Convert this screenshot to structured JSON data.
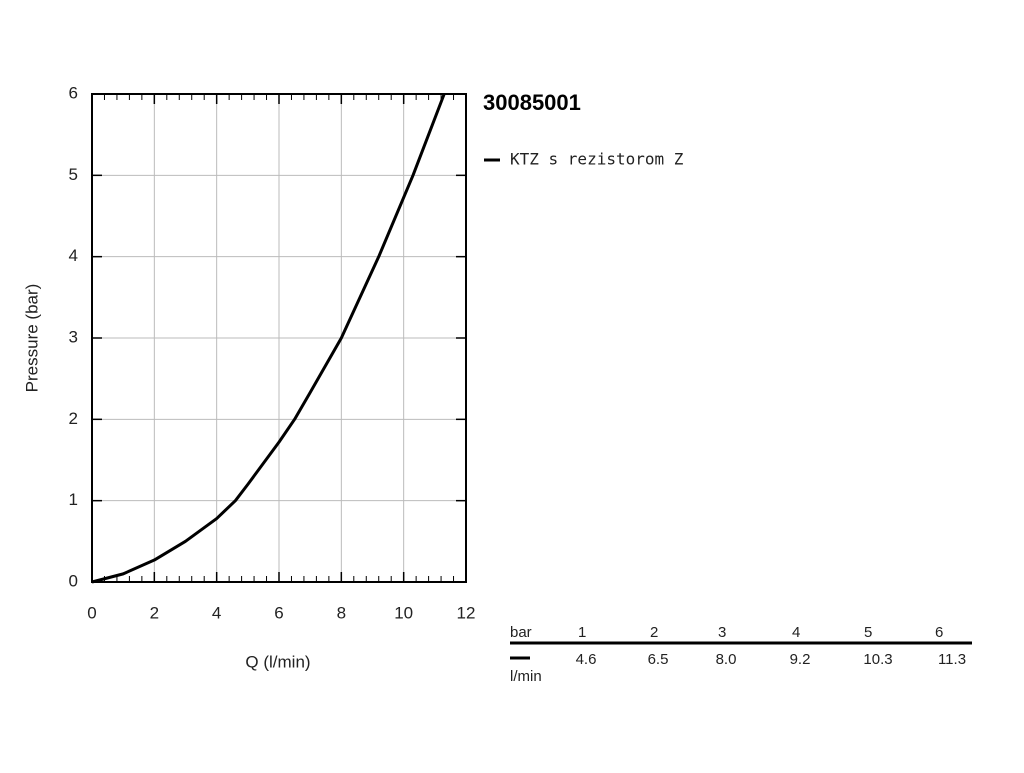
{
  "chart_data": {
    "type": "line",
    "title": "30085001",
    "x_label": "Q (l/min)",
    "y_label": "Pressure (bar)",
    "x": [
      0,
      1,
      2,
      3,
      4,
      4.6,
      5,
      6,
      6.5,
      7,
      8,
      9.2,
      10.3,
      11.3
    ],
    "series": [
      {
        "name": "KTZ s rezistorom Z",
        "color": "#000000",
        "values": [
          0,
          0.1,
          0.27,
          0.5,
          0.78,
          1,
          1.2,
          1.72,
          2,
          2.33,
          3,
          4,
          5,
          6
        ]
      }
    ],
    "xlim": [
      0,
      12
    ],
    "xticks": [
      0,
      2,
      4,
      6,
      8,
      10,
      12
    ],
    "ylim": [
      0,
      6
    ],
    "yticks": [
      0,
      1,
      2,
      3,
      4,
      5,
      6
    ],
    "grid": true
  },
  "table": {
    "header": "bar",
    "unit": "l/min",
    "pressures": [
      1,
      2,
      3,
      4,
      5,
      6
    ],
    "flows": [
      "4.6",
      "6.5",
      "8.0",
      "9.2",
      "10.3",
      "11.3"
    ]
  }
}
